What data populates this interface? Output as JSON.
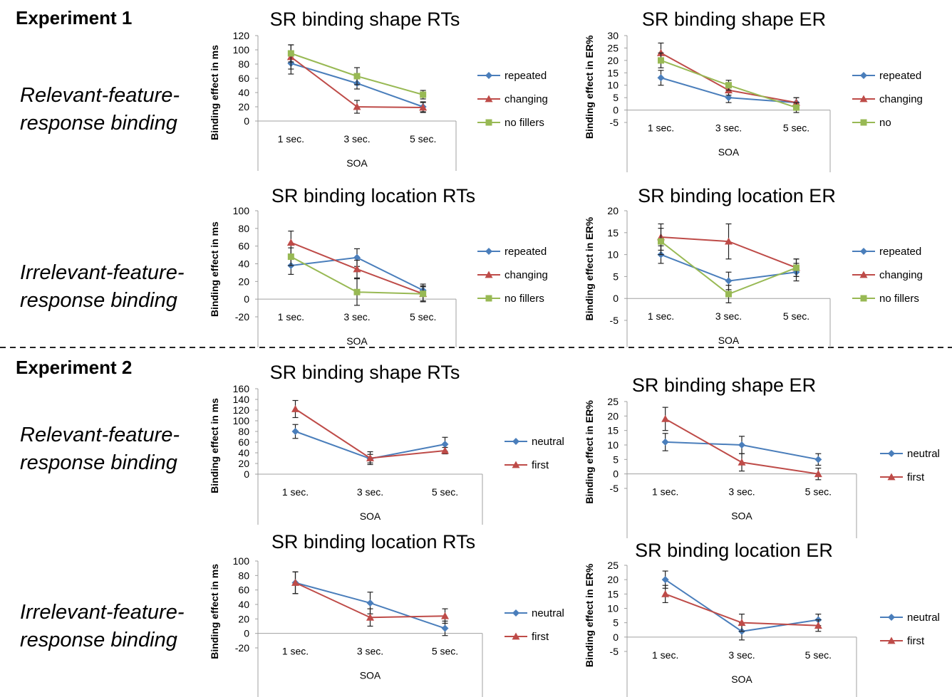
{
  "headers": {
    "experiment_1": "Experiment 1",
    "experiment_2": "Experiment 2",
    "exp1_row1": [
      "Relevant-feature-",
      "response binding"
    ],
    "exp1_row2": [
      "Irrelevant-feature-",
      "response binding"
    ],
    "exp2_row1": [
      "Relevant-feature-",
      "response binding"
    ],
    "exp2_row2": [
      "Irrelevant-feature-",
      "response binding"
    ]
  },
  "colors": {
    "blue": "#4a7ebb",
    "red": "#be4b48",
    "green": "#98b954"
  },
  "chart_data": [
    {
      "type": "line",
      "title": "SR binding shape RTs",
      "xlabel": "SOA",
      "ylabel": "Binding effect in ms",
      "categories": [
        "1 sec.",
        "3 sec.",
        "5 sec."
      ],
      "ylim": [
        0,
        120
      ],
      "yticks": [
        0,
        20,
        40,
        60,
        80,
        100,
        120
      ],
      "legend_position": "right",
      "series": [
        {
          "name": "repeated",
          "color": "#4a7ebb",
          "marker": "diamond",
          "values": [
            81,
            53,
            20
          ],
          "errors": [
            15,
            8,
            7
          ]
        },
        {
          "name": "changing",
          "color": "#be4b48",
          "marker": "triangle",
          "values": [
            90,
            20,
            19
          ],
          "errors": [
            17,
            9,
            7
          ]
        },
        {
          "name": "no fillers",
          "color": "#98b954",
          "marker": "square",
          "values": [
            95,
            63,
            37
          ],
          "errors": [
            12,
            12,
            6
          ]
        }
      ]
    },
    {
      "type": "line",
      "title": "SR binding shape ER",
      "xlabel": "SOA",
      "ylabel": "Binding effect in ER%",
      "categories": [
        "1 sec.",
        "3 sec.",
        "5 sec."
      ],
      "ylim": [
        -5,
        30
      ],
      "yticks": [
        -5,
        0,
        5,
        10,
        15,
        20,
        25,
        30
      ],
      "legend_position": "right",
      "series": [
        {
          "name": "repeated",
          "color": "#4a7ebb",
          "marker": "diamond",
          "values": [
            13,
            5,
            3
          ],
          "errors": [
            3,
            2,
            2
          ]
        },
        {
          "name": "changing",
          "color": "#be4b48",
          "marker": "triangle",
          "values": [
            23,
            8,
            3
          ],
          "errors": [
            4,
            2,
            2
          ]
        },
        {
          "name": "no",
          "color": "#98b954",
          "marker": "square",
          "values": [
            20,
            10,
            1
          ],
          "errors": [
            3,
            2,
            2
          ]
        }
      ]
    },
    {
      "type": "line",
      "title": "SR binding location RTs",
      "xlabel": "SOA",
      "ylabel": "Binding effect in ms",
      "categories": [
        "1 sec.",
        "3 sec.",
        "5 sec."
      ],
      "ylim": [
        -20,
        100
      ],
      "yticks": [
        -20,
        0,
        20,
        40,
        60,
        80,
        100
      ],
      "legend_position": "right",
      "series": [
        {
          "name": "repeated",
          "color": "#4a7ebb",
          "marker": "diamond",
          "values": [
            38,
            47,
            10
          ],
          "errors": [
            10,
            10,
            7
          ]
        },
        {
          "name": "changing",
          "color": "#be4b48",
          "marker": "triangle",
          "values": [
            64,
            34,
            6
          ],
          "errors": [
            13,
            10,
            8
          ]
        },
        {
          "name": "no fillers",
          "color": "#98b954",
          "marker": "square",
          "values": [
            48,
            8,
            6
          ],
          "errors": [
            10,
            15,
            9
          ]
        }
      ]
    },
    {
      "type": "line",
      "title": "SR binding location ER",
      "xlabel": "SOA",
      "ylabel": "Binding effect in ER%",
      "categories": [
        "1 sec.",
        "3 sec.",
        "5 sec."
      ],
      "ylim": [
        -5,
        20
      ],
      "yticks": [
        -5,
        0,
        5,
        10,
        15,
        20
      ],
      "legend_position": "right",
      "series": [
        {
          "name": "repeated",
          "color": "#4a7ebb",
          "marker": "diamond",
          "values": [
            10,
            4,
            6
          ],
          "errors": [
            2,
            2,
            2
          ]
        },
        {
          "name": "changing",
          "color": "#be4b48",
          "marker": "triangle",
          "values": [
            14,
            13,
            7
          ],
          "errors": [
            3,
            4,
            2
          ]
        },
        {
          "name": "no fillers",
          "color": "#98b954",
          "marker": "square",
          "values": [
            13,
            1,
            7
          ],
          "errors": [
            3,
            2,
            2
          ]
        }
      ]
    },
    {
      "type": "line",
      "title": "SR binding shape RTs",
      "xlabel": "SOA",
      "ylabel": "Binding effect in ms",
      "categories": [
        "1 sec.",
        "3 sec.",
        "5 sec."
      ],
      "ylim": [
        0,
        160
      ],
      "yticks": [
        0,
        20,
        40,
        60,
        80,
        100,
        120,
        140,
        160
      ],
      "legend_position": "right",
      "series": [
        {
          "name": "neutral",
          "color": "#4a7ebb",
          "marker": "diamond",
          "values": [
            80,
            29,
            56
          ],
          "errors": [
            13,
            8,
            13
          ]
        },
        {
          "name": "first",
          "color": "#be4b48",
          "marker": "triangle",
          "values": [
            122,
            30,
            44
          ],
          "errors": [
            16,
            12,
            6
          ]
        }
      ]
    },
    {
      "type": "line",
      "title": "SR binding shape ER",
      "xlabel": "SOA",
      "ylabel": "Binding effect in ER%",
      "categories": [
        "1 sec.",
        "3 sec.",
        "5 sec."
      ],
      "ylim": [
        -5,
        25
      ],
      "yticks": [
        -5,
        0,
        5,
        10,
        15,
        20,
        25
      ],
      "legend_position": "right",
      "series": [
        {
          "name": "neutral",
          "color": "#4a7ebb",
          "marker": "diamond",
          "values": [
            11,
            10,
            5
          ],
          "errors": [
            3,
            3,
            2
          ]
        },
        {
          "name": "first",
          "color": "#be4b48",
          "marker": "triangle",
          "values": [
            19,
            4,
            0
          ],
          "errors": [
            4,
            3,
            2
          ]
        }
      ]
    },
    {
      "type": "line",
      "title": "SR binding location RTs",
      "xlabel": "SOA",
      "ylabel": "Binding effect in ms",
      "categories": [
        "1 sec.",
        "3 sec.",
        "5 sec."
      ],
      "ylim": [
        -20,
        100
      ],
      "yticks": [
        -20,
        0,
        20,
        40,
        60,
        80,
        100
      ],
      "legend_position": "right",
      "series": [
        {
          "name": "neutral",
          "color": "#4a7ebb",
          "marker": "diamond",
          "values": [
            70,
            42,
            7
          ],
          "errors": [
            15,
            15,
            10
          ]
        },
        {
          "name": "first",
          "color": "#be4b48",
          "marker": "triangle",
          "values": [
            70,
            22,
            24
          ],
          "errors": [
            15,
            12,
            10
          ]
        }
      ]
    },
    {
      "type": "line",
      "title": "SR binding location ER",
      "xlabel": "SOA",
      "ylabel": "Binding effect in ER%",
      "categories": [
        "1 sec.",
        "3 sec.",
        "5 sec."
      ],
      "ylim": [
        -5,
        25
      ],
      "yticks": [
        -5,
        0,
        5,
        10,
        15,
        20,
        25
      ],
      "legend_position": "right",
      "series": [
        {
          "name": "neutral",
          "color": "#4a7ebb",
          "marker": "diamond",
          "values": [
            20,
            2,
            6
          ],
          "errors": [
            3,
            3,
            2
          ]
        },
        {
          "name": "first",
          "color": "#be4b48",
          "marker": "triangle",
          "values": [
            15,
            5,
            4
          ],
          "errors": [
            3,
            3,
            2
          ]
        }
      ]
    }
  ]
}
